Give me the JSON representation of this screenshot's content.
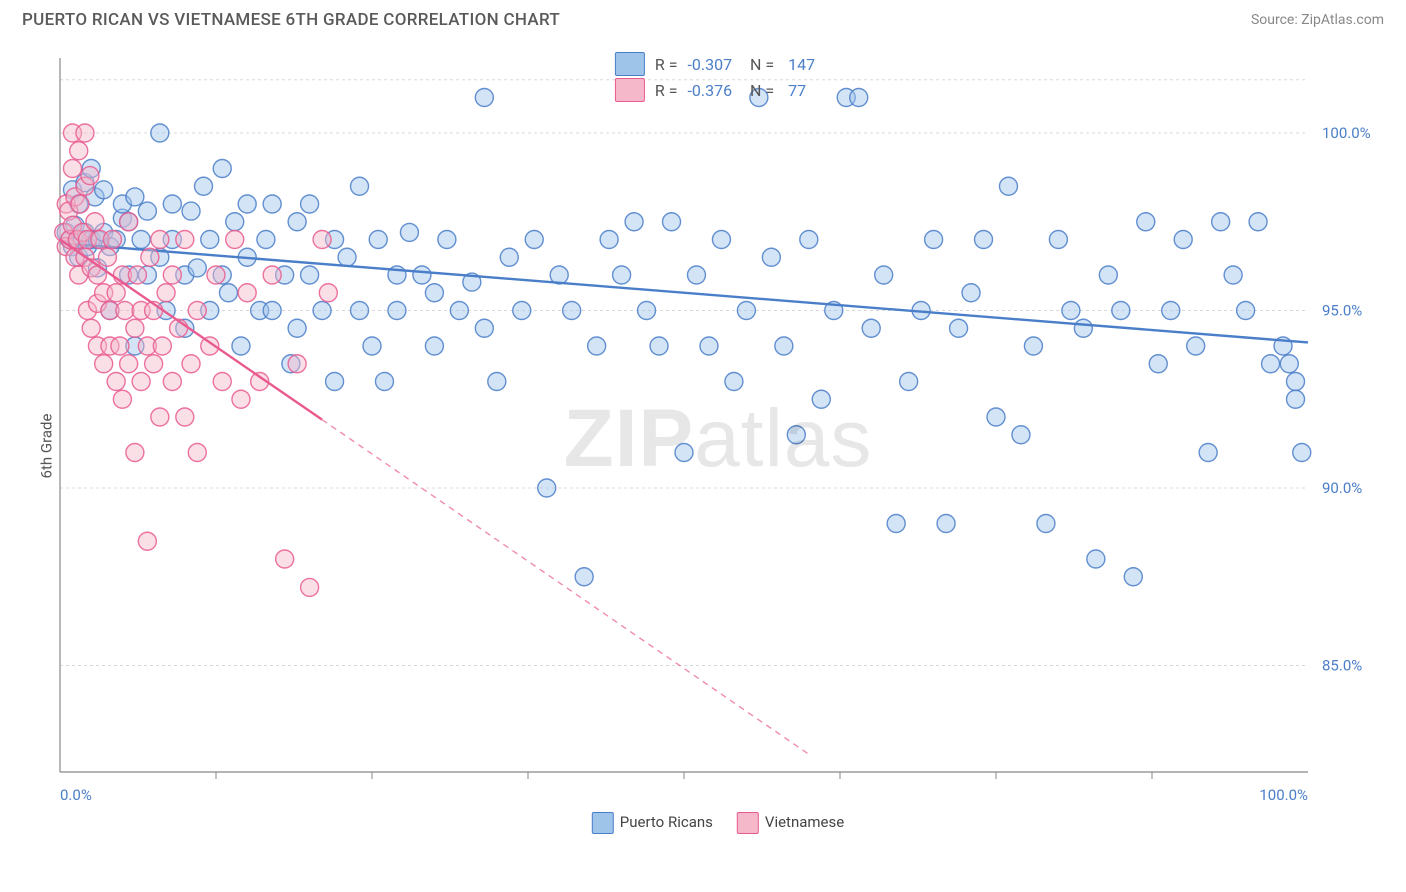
{
  "title": "PUERTO RICAN VS VIETNAMESE 6TH GRADE CORRELATION CHART",
  "source": "Source: ZipAtlas.com",
  "ylabel": "6th Grade",
  "watermark_left": "ZIP",
  "watermark_right": "atlas",
  "chart": {
    "type": "scatter",
    "background_color": "#ffffff",
    "grid_color": "#d8d8d8",
    "axis_color": "#888888",
    "tick_label_color": "#4a7ec9",
    "tick_fontsize": 15,
    "title_fontsize": 17,
    "title_color": "#5a5a5a",
    "xlim": [
      0,
      100
    ],
    "ylim": [
      82,
      102
    ],
    "y_ticks": [
      85.0,
      90.0,
      95.0,
      100.0
    ],
    "y_tick_labels": [
      "85.0%",
      "90.0%",
      "95.0%",
      "100.0%"
    ],
    "x_ticks": [
      0,
      100
    ],
    "x_tick_labels": [
      "0.0%",
      "100.0%"
    ],
    "x_minor_ticks": [
      12.5,
      25,
      37.5,
      50,
      62.5,
      75,
      87.5
    ],
    "marker_radius": 9,
    "marker_opacity": 0.45,
    "marker_stroke_opacity": 0.85,
    "marker_stroke_width": 1.4,
    "trend_line_width": 2.4,
    "series": [
      {
        "name": "Puerto Ricans",
        "color_fill": "#9ec4ea",
        "color_stroke": "#4a7ec9",
        "R": "-0.307",
        "N": "147",
        "trend": {
          "x1": 0,
          "y1": 96.9,
          "x2": 100,
          "y2": 94.1,
          "extrapolate": false
        },
        "points": [
          [
            0.5,
            97.2
          ],
          [
            0.8,
            97.0
          ],
          [
            1.0,
            96.8
          ],
          [
            1.0,
            98.4
          ],
          [
            1.2,
            97.4
          ],
          [
            1.5,
            96.5
          ],
          [
            1.5,
            98.0
          ],
          [
            1.8,
            97.0
          ],
          [
            2.0,
            97.2
          ],
          [
            2.0,
            98.6
          ],
          [
            2.2,
            96.8
          ],
          [
            2.5,
            97.0
          ],
          [
            2.5,
            99.0
          ],
          [
            2.8,
            98.2
          ],
          [
            3.0,
            97.0
          ],
          [
            3.0,
            96.2
          ],
          [
            3.5,
            98.4
          ],
          [
            3.5,
            97.2
          ],
          [
            4.0,
            96.8
          ],
          [
            4.0,
            95.0
          ],
          [
            4.5,
            97.0
          ],
          [
            5.0,
            97.6
          ],
          [
            5.0,
            98.0
          ],
          [
            5.5,
            96.0
          ],
          [
            5.5,
            97.5
          ],
          [
            6.0,
            98.2
          ],
          [
            6.0,
            94.0
          ],
          [
            6.5,
            97.0
          ],
          [
            7.0,
            96.0
          ],
          [
            7.0,
            97.8
          ],
          [
            8.0,
            100.0
          ],
          [
            8.0,
            96.5
          ],
          [
            8.5,
            95.0
          ],
          [
            9.0,
            97.0
          ],
          [
            9.0,
            98.0
          ],
          [
            10.0,
            96.0
          ],
          [
            10.0,
            94.5
          ],
          [
            10.5,
            97.8
          ],
          [
            11.0,
            96.2
          ],
          [
            11.5,
            98.5
          ],
          [
            12.0,
            95.0
          ],
          [
            12.0,
            97.0
          ],
          [
            13.0,
            96.0
          ],
          [
            13.0,
            99.0
          ],
          [
            13.5,
            95.5
          ],
          [
            14.0,
            97.5
          ],
          [
            14.5,
            94.0
          ],
          [
            15.0,
            98.0
          ],
          [
            15.0,
            96.5
          ],
          [
            16.0,
            95.0
          ],
          [
            16.5,
            97.0
          ],
          [
            17.0,
            98.0
          ],
          [
            17.0,
            95.0
          ],
          [
            18.0,
            96.0
          ],
          [
            18.5,
            93.5
          ],
          [
            19.0,
            97.5
          ],
          [
            19.0,
            94.5
          ],
          [
            20.0,
            96.0
          ],
          [
            20.0,
            98.0
          ],
          [
            21.0,
            95.0
          ],
          [
            22.0,
            93.0
          ],
          [
            22.0,
            97.0
          ],
          [
            23.0,
            96.5
          ],
          [
            24.0,
            95.0
          ],
          [
            24.0,
            98.5
          ],
          [
            25.0,
            94.0
          ],
          [
            25.5,
            97.0
          ],
          [
            26.0,
            93.0
          ],
          [
            27.0,
            96.0
          ],
          [
            27.0,
            95.0
          ],
          [
            28.0,
            97.2
          ],
          [
            29.0,
            96.0
          ],
          [
            30.0,
            95.5
          ],
          [
            30.0,
            94.0
          ],
          [
            31.0,
            97.0
          ],
          [
            32.0,
            95.0
          ],
          [
            33.0,
            95.8
          ],
          [
            34.0,
            101.0
          ],
          [
            34.0,
            94.5
          ],
          [
            35.0,
            93.0
          ],
          [
            36.0,
            96.5
          ],
          [
            37.0,
            95.0
          ],
          [
            38.0,
            97.0
          ],
          [
            39.0,
            90.0
          ],
          [
            40.0,
            96.0
          ],
          [
            41.0,
            95.0
          ],
          [
            42.0,
            87.5
          ],
          [
            43.0,
            94.0
          ],
          [
            44.0,
            97.0
          ],
          [
            45.0,
            96.0
          ],
          [
            46.0,
            97.5
          ],
          [
            47.0,
            95.0
          ],
          [
            48.0,
            94.0
          ],
          [
            49.0,
            97.5
          ],
          [
            50.0,
            91.0
          ],
          [
            51.0,
            96.0
          ],
          [
            52.0,
            94.0
          ],
          [
            53.0,
            97.0
          ],
          [
            54.0,
            93.0
          ],
          [
            55.0,
            95.0
          ],
          [
            56.0,
            101.0
          ],
          [
            57.0,
            96.5
          ],
          [
            58.0,
            94.0
          ],
          [
            59.0,
            91.5
          ],
          [
            60.0,
            97.0
          ],
          [
            61.0,
            92.5
          ],
          [
            62.0,
            95.0
          ],
          [
            63.0,
            101.0
          ],
          [
            64.0,
            101.0
          ],
          [
            65.0,
            94.5
          ],
          [
            66.0,
            96.0
          ],
          [
            67.0,
            89.0
          ],
          [
            68.0,
            93.0
          ],
          [
            69.0,
            95.0
          ],
          [
            70.0,
            97.0
          ],
          [
            71.0,
            89.0
          ],
          [
            72.0,
            94.5
          ],
          [
            73.0,
            95.5
          ],
          [
            74.0,
            97.0
          ],
          [
            75.0,
            92.0
          ],
          [
            76.0,
            98.5
          ],
          [
            77.0,
            91.5
          ],
          [
            78.0,
            94.0
          ],
          [
            79.0,
            89.0
          ],
          [
            80.0,
            97.0
          ],
          [
            81.0,
            95.0
          ],
          [
            82.0,
            94.5
          ],
          [
            83.0,
            88.0
          ],
          [
            84.0,
            96.0
          ],
          [
            85.0,
            95.0
          ],
          [
            86.0,
            87.5
          ],
          [
            87.0,
            97.5
          ],
          [
            88.0,
            93.5
          ],
          [
            89.0,
            95.0
          ],
          [
            90.0,
            97.0
          ],
          [
            91.0,
            94.0
          ],
          [
            92.0,
            91.0
          ],
          [
            93.0,
            97.5
          ],
          [
            94.0,
            96.0
          ],
          [
            95.0,
            95.0
          ],
          [
            96.0,
            97.5
          ],
          [
            97.0,
            93.5
          ],
          [
            98.0,
            94.0
          ],
          [
            98.5,
            93.5
          ],
          [
            99.0,
            92.5
          ],
          [
            99.0,
            93.0
          ],
          [
            99.5,
            91.0
          ]
        ]
      },
      {
        "name": "Vietnamese",
        "color_fill": "#f4b8ca",
        "color_stroke": "#e95a8f",
        "R": "-0.376",
        "N": "77",
        "trend": {
          "x1": 0,
          "y1": 97.0,
          "x2": 60,
          "y2": 82.5,
          "extrapolate_x_end": 21,
          "dash": "6 5"
        },
        "points": [
          [
            0.3,
            97.2
          ],
          [
            0.5,
            96.8
          ],
          [
            0.5,
            98.0
          ],
          [
            0.7,
            97.8
          ],
          [
            0.8,
            97.0
          ],
          [
            1.0,
            99.0
          ],
          [
            1.0,
            97.4
          ],
          [
            1.0,
            100.0
          ],
          [
            1.2,
            96.5
          ],
          [
            1.2,
            98.2
          ],
          [
            1.4,
            97.0
          ],
          [
            1.5,
            99.5
          ],
          [
            1.5,
            96.0
          ],
          [
            1.6,
            98.0
          ],
          [
            1.8,
            97.2
          ],
          [
            2.0,
            100.0
          ],
          [
            2.0,
            96.5
          ],
          [
            2.0,
            98.5
          ],
          [
            2.2,
            95.0
          ],
          [
            2.2,
            97.0
          ],
          [
            2.4,
            98.8
          ],
          [
            2.5,
            96.2
          ],
          [
            2.5,
            94.5
          ],
          [
            2.8,
            97.5
          ],
          [
            3.0,
            96.0
          ],
          [
            3.0,
            95.2
          ],
          [
            3.0,
            94.0
          ],
          [
            3.2,
            97.0
          ],
          [
            3.5,
            95.5
          ],
          [
            3.5,
            93.5
          ],
          [
            3.8,
            96.5
          ],
          [
            4.0,
            94.0
          ],
          [
            4.0,
            95.0
          ],
          [
            4.2,
            97.0
          ],
          [
            4.5,
            93.0
          ],
          [
            4.5,
            95.5
          ],
          [
            4.8,
            94.0
          ],
          [
            5.0,
            96.0
          ],
          [
            5.0,
            92.5
          ],
          [
            5.2,
            95.0
          ],
          [
            5.5,
            93.5
          ],
          [
            5.5,
            97.5
          ],
          [
            6.0,
            94.5
          ],
          [
            6.0,
            91.0
          ],
          [
            6.2,
            96.0
          ],
          [
            6.5,
            93.0
          ],
          [
            6.5,
            95.0
          ],
          [
            7.0,
            94.0
          ],
          [
            7.0,
            88.5
          ],
          [
            7.2,
            96.5
          ],
          [
            7.5,
            93.5
          ],
          [
            7.5,
            95.0
          ],
          [
            8.0,
            92.0
          ],
          [
            8.0,
            97.0
          ],
          [
            8.2,
            94.0
          ],
          [
            8.5,
            95.5
          ],
          [
            9.0,
            93.0
          ],
          [
            9.0,
            96.0
          ],
          [
            9.5,
            94.5
          ],
          [
            10.0,
            92.0
          ],
          [
            10.0,
            97.0
          ],
          [
            10.5,
            93.5
          ],
          [
            11.0,
            95.0
          ],
          [
            11.0,
            91.0
          ],
          [
            12.0,
            94.0
          ],
          [
            12.5,
            96.0
          ],
          [
            13.0,
            93.0
          ],
          [
            14.0,
            97.0
          ],
          [
            14.5,
            92.5
          ],
          [
            15.0,
            95.5
          ],
          [
            16.0,
            93.0
          ],
          [
            17.0,
            96.0
          ],
          [
            18.0,
            88.0
          ],
          [
            19.0,
            93.5
          ],
          [
            20.0,
            87.2
          ],
          [
            21.0,
            97.0
          ],
          [
            21.5,
            95.5
          ]
        ]
      }
    ]
  },
  "bottom_legend": [
    {
      "label": "Puerto Ricans",
      "fill": "#9ec4ea",
      "stroke": "#4a7ec9"
    },
    {
      "label": "Vietnamese",
      "fill": "#f4b8ca",
      "stroke": "#e95a8f"
    }
  ]
}
